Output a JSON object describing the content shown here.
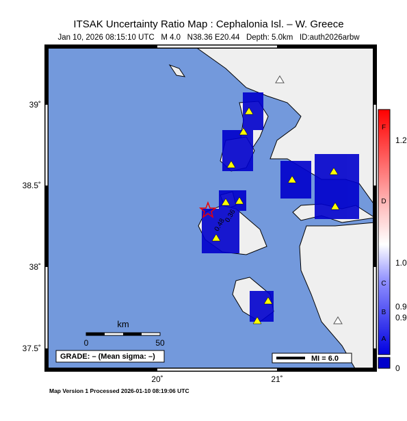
{
  "header": {
    "title": "ITSAK Uncertainty Ratio Map : Cephalonia Isl. – W. Greece",
    "subtitle": "Jan 10, 2026 08:15:10 UTC   M 4.0   N38.36 E20.44   Depth: 5.0km   ID:auth2026arbw"
  },
  "map": {
    "lat_labels": [
      "39˚",
      "38.5˚",
      "38˚",
      "37.5˚"
    ],
    "lon_labels": [
      "20˚",
      "21˚"
    ],
    "contour_labels": [
      "0.48",
      "0.36"
    ],
    "scale": {
      "unit": "km",
      "labels": [
        "0",
        "50"
      ]
    },
    "grade": "GRADE: – (Mean sigma: –)",
    "mi": "MI = 6.0"
  },
  "colorbar": {
    "grades": [
      "F",
      "D",
      "C",
      "B",
      "A"
    ],
    "labels": [
      "1.2",
      "1.0",
      "0.9",
      "0.9",
      "0"
    ]
  },
  "footer": "Map Version 1 Processed 2026-01-10 08:19:06 UTC"
}
